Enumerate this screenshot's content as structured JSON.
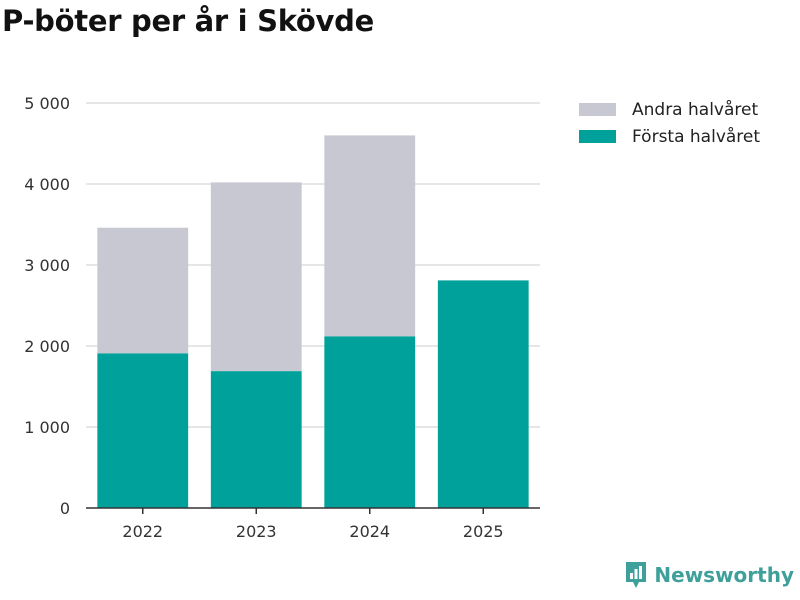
{
  "title": "P-böter per år i Skövde",
  "brand": {
    "name": "Newsworthy",
    "color": "#3f9f9a",
    "icon": "newsworthy-logo-icon"
  },
  "colors": {
    "first_half": "#00a19a",
    "second_half": "#c8c8d2",
    "grid": "#dddddd",
    "axis": "#333333"
  },
  "chart_data": {
    "type": "bar",
    "stacked": true,
    "title": "P-böter per år i Skövde",
    "xlabel": "",
    "ylabel": "",
    "categories": [
      "2022",
      "2023",
      "2024",
      "2025"
    ],
    "series": [
      {
        "name": "Första halvåret",
        "values": [
          1910,
          1690,
          2120,
          2810
        ],
        "color": "#00a19a"
      },
      {
        "name": "Andra halvåret",
        "values": [
          1550,
          2330,
          2480,
          null
        ],
        "color": "#c8c8d2"
      }
    ],
    "ylim": [
      0,
      5000
    ],
    "yticks": [
      0,
      1000,
      2000,
      3000,
      4000,
      5000
    ],
    "ytick_labels": [
      "0",
      "1 000",
      "2 000",
      "3 000",
      "4 000",
      "5 000"
    ],
    "grid": true,
    "legend": {
      "position": "top-right",
      "entries": [
        {
          "label": "Andra halvåret",
          "color": "#c8c8d2"
        },
        {
          "label": "Första halvåret",
          "color": "#00a19a"
        }
      ]
    }
  }
}
